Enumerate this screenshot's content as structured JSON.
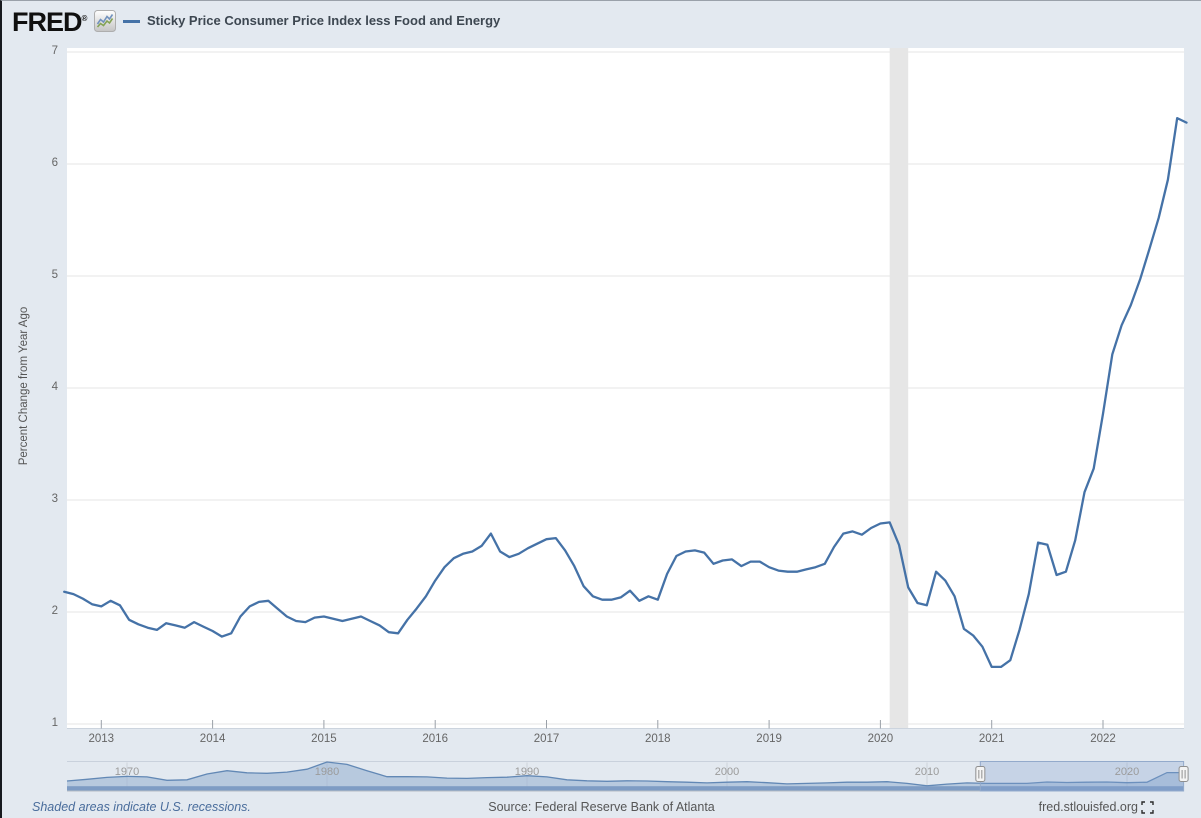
{
  "header": {
    "logo_text": "FRED",
    "logo_registered": "®",
    "legend_label": "Sticky Price Consumer Price Index less Food and Energy"
  },
  "y_axis": {
    "title": "Percent Change from Year Ago",
    "ticks": [
      7,
      6,
      5,
      4,
      3,
      2,
      1
    ]
  },
  "x_axis": {
    "ticks": [
      "2013",
      "2014",
      "2015",
      "2016",
      "2017",
      "2018",
      "2019",
      "2020",
      "2021",
      "2022"
    ]
  },
  "chart_data": {
    "type": "line",
    "series_name": "Sticky Price Consumer Price Index less Food and Energy",
    "ylabel": "Percent Change from Year Ago",
    "frequency": "monthly",
    "start_month": "2012-09",
    "end_month": "2022-10",
    "ylim": [
      1,
      7
    ],
    "grid": "horizontal",
    "recession_band": {
      "start": "2020-02",
      "end": "2020-04"
    },
    "values": [
      2.18,
      2.16,
      2.12,
      2.07,
      2.05,
      2.1,
      2.06,
      1.93,
      1.89,
      1.86,
      1.84,
      1.9,
      1.88,
      1.86,
      1.91,
      1.87,
      1.83,
      1.78,
      1.81,
      1.96,
      2.05,
      2.09,
      2.1,
      2.03,
      1.96,
      1.92,
      1.91,
      1.95,
      1.96,
      1.94,
      1.92,
      1.94,
      1.96,
      1.92,
      1.88,
      1.82,
      1.81,
      1.93,
      2.03,
      2.14,
      2.28,
      2.4,
      2.48,
      2.52,
      2.54,
      2.59,
      2.7,
      2.54,
      2.49,
      2.52,
      2.57,
      2.61,
      2.65,
      2.66,
      2.55,
      2.41,
      2.23,
      2.14,
      2.11,
      2.11,
      2.13,
      2.19,
      2.1,
      2.14,
      2.11,
      2.34,
      2.5,
      2.54,
      2.55,
      2.53,
      2.43,
      2.46,
      2.47,
      2.41,
      2.45,
      2.45,
      2.4,
      2.37,
      2.36,
      2.36,
      2.38,
      2.4,
      2.43,
      2.58,
      2.7,
      2.72,
      2.69,
      2.75,
      2.79,
      2.8,
      2.6,
      2.22,
      2.08,
      2.06,
      2.36,
      2.28,
      2.14,
      1.85,
      1.79,
      1.69,
      1.51,
      1.51,
      1.57,
      1.84,
      2.16,
      2.62,
      2.6,
      2.33,
      2.36,
      2.64,
      3.07,
      3.28,
      3.77,
      4.3,
      4.56,
      4.74,
      4.97,
      5.24,
      5.52,
      5.86,
      6.41,
      6.37
    ]
  },
  "navigator": {
    "type": "area",
    "start_year": 1967,
    "end": "2022-10",
    "ylim": [
      0,
      11
    ],
    "decade_labels": [
      "1970",
      "1980",
      "1990",
      "2000",
      "2010",
      "2020"
    ],
    "selected_range": {
      "start": "2012-09",
      "end": "2022-10"
    },
    "yearly_values": [
      2.9,
      3.6,
      4.4,
      4.8,
      4.6,
      3.2,
      3.4,
      5.8,
      7.2,
      6.3,
      6.1,
      6.6,
      7.8,
      10.8,
      9.8,
      7.2,
      4.7,
      4.7,
      4.6,
      4.1,
      4.0,
      4.3,
      4.5,
      5.1,
      4.6,
      3.4,
      3.0,
      2.8,
      3.0,
      2.9,
      2.6,
      2.4,
      2.1,
      2.4,
      2.6,
      2.2,
      1.7,
      1.9,
      2.1,
      2.4,
      2.4,
      2.6,
      1.9,
      0.9,
      1.6,
      2.1,
      1.9,
      1.9,
      1.9,
      2.5,
      2.3,
      2.4,
      2.5,
      2.2,
      2.4,
      6.4
    ]
  },
  "footer": {
    "recession_note": "Shaded areas indicate U.S. recessions.",
    "source": "Source: Federal Reserve Bank of Atlanta",
    "site": "fred.stlouisfed.org"
  },
  "colors": {
    "background": "#e3e9f0",
    "plot_background": "#ffffff",
    "line": "#4572a7",
    "gridline": "#e6e6e6",
    "recession_band": "#e6e6e6",
    "axis_label": "#666666",
    "nav_area_fill": "#9db5d4",
    "nav_area_line": "#6288b5",
    "nav_bottom_strip": "#7e9cc4",
    "nav_selection_fill": "rgba(134,163,207,0.30)",
    "nav_selection_border": "#93aacb",
    "footer_note": "#4a6d9c"
  }
}
